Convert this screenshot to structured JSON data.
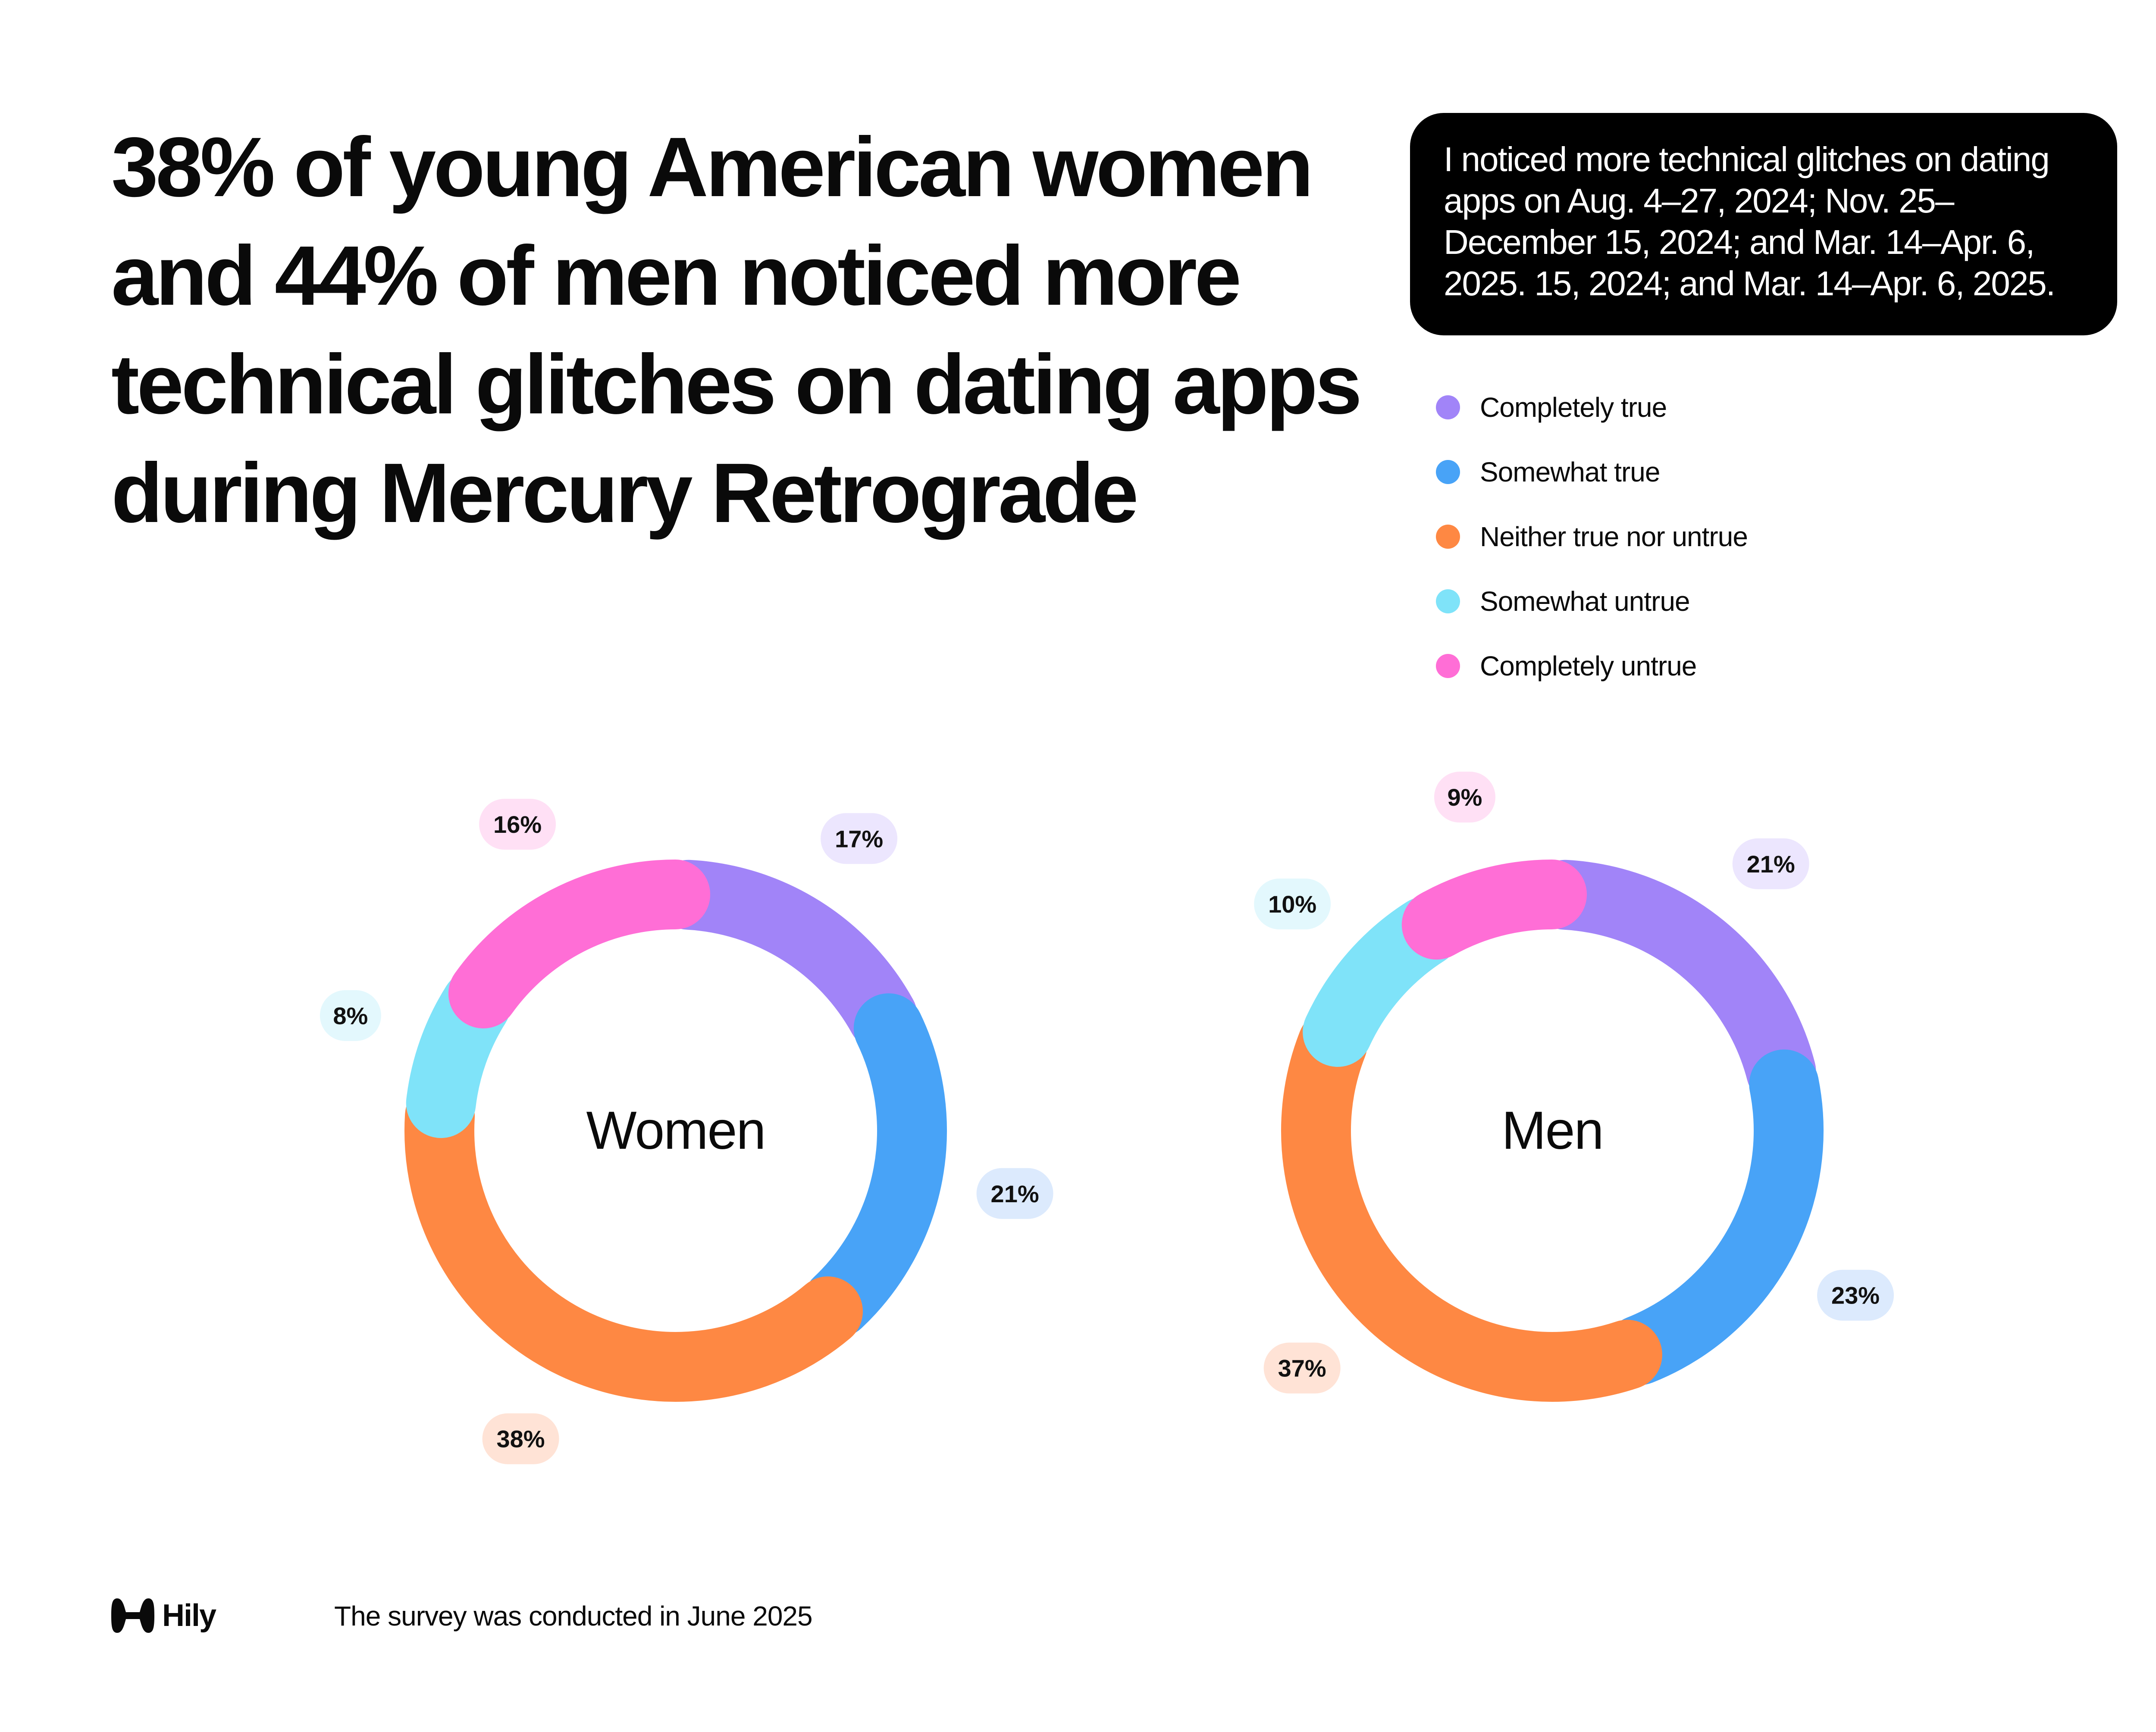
{
  "headline": "38% of young American women and 44% of men noticed more technical glitches on dating apps during Mercury Retrograde",
  "statement": "I noticed more technical glitches on dating apps on Aug. 4–27, 2024; Nov. 25–December 15, 2024; and Mar. 14–Apr. 6, 2025. 15, 2024; and Mar. 14–Apr. 6, 2025.",
  "legend": [
    {
      "label": "Completely true",
      "color": "#A184F8"
    },
    {
      "label": "Somewhat true",
      "color": "#48A3F7"
    },
    {
      "label": "Neither true nor untrue",
      "color": "#FE8843"
    },
    {
      "label": "Somewhat untrue",
      "color": "#7FE3F9"
    },
    {
      "label": "Completely untrue",
      "color": "#FF6ED6"
    }
  ],
  "chart_data": [
    {
      "type": "pie",
      "center_label": "Women",
      "categories": [
        "Completely true",
        "Somewhat true",
        "Neither true nor untrue",
        "Somewhat untrue",
        "Completely untrue"
      ],
      "values": [
        17,
        21,
        38,
        8,
        16
      ],
      "labels": [
        "17%",
        "21%",
        "38%",
        "8%",
        "16%"
      ],
      "colors": [
        "#A184F8",
        "#48A3F7",
        "#FE8843",
        "#7FE3F9",
        "#FF6ED6"
      ],
      "label_bg": [
        "#ECE6FE",
        "#DCEAFD",
        "#FFE3D6",
        "#E3F8FD",
        "#FFE0F5"
      ]
    },
    {
      "type": "pie",
      "center_label": "Men",
      "categories": [
        "Completely true",
        "Somewhat true",
        "Neither true nor untrue",
        "Somewhat untrue",
        "Completely untrue"
      ],
      "values": [
        21,
        23,
        37,
        10,
        9
      ],
      "labels": [
        "21%",
        "23%",
        "37%",
        "10%",
        "9%"
      ],
      "colors": [
        "#A184F8",
        "#48A3F7",
        "#FE8843",
        "#7FE3F9",
        "#FF6ED6"
      ],
      "label_bg": [
        "#ECE6FE",
        "#DCEAFD",
        "#FFE3D6",
        "#E3F8FD",
        "#FFE0F5"
      ]
    }
  ],
  "footer": {
    "logo_text": "Hily",
    "note": "The survey was conducted in June 2025"
  }
}
